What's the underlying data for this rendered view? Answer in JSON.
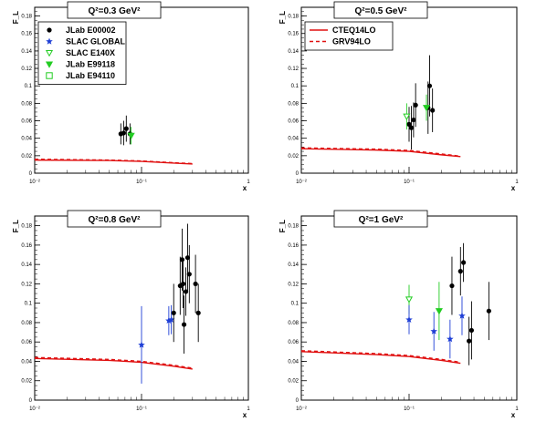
{
  "chart_data": [
    {
      "type": "scatter",
      "title": "Q²=0.3 GeV²",
      "ylabel": "F_L",
      "xlabel": "x",
      "x_scale": "log",
      "xlim": [
        0.01,
        1
      ],
      "ylim": [
        0,
        0.19
      ],
      "x_ticks": [
        "10⁻²",
        "10⁻¹",
        "1"
      ],
      "y_ticks": [
        0,
        0.02,
        0.04,
        0.06,
        0.08,
        0.1,
        0.12,
        0.14,
        0.16,
        0.18
      ],
      "legend": "top-left",
      "legend_entries": [
        {
          "label": "JLab E00002",
          "marker": "circle",
          "color": "#000000"
        },
        {
          "label": "SLAC GLOBAL",
          "marker": "star",
          "color": "#1f3fd6"
        },
        {
          "label": "SLAC E140X",
          "marker": "triangle-down-open",
          "color": "#22cc22"
        },
        {
          "label": "JLab E99118",
          "marker": "triangle-down",
          "color": "#22cc22"
        },
        {
          "label": "JLab E94110",
          "marker": "square-open",
          "color": "#22cc22"
        }
      ],
      "points": [
        {
          "series": "JLab E00002",
          "x": 0.064,
          "y": 0.045,
          "err": 0.012
        },
        {
          "series": "JLab E00002",
          "x": 0.068,
          "y": 0.046,
          "err": 0.014
        },
        {
          "series": "JLab E00002",
          "x": 0.072,
          "y": 0.051,
          "err": 0.015
        },
        {
          "series": "JLab E00002",
          "x": 0.078,
          "y": 0.045,
          "err": 0.012
        },
        {
          "series": "JLab E99118",
          "x": 0.08,
          "y": 0.043,
          "err": 0.01
        }
      ],
      "curves": [
        {
          "label": "CTEQ14LO",
          "x": [
            0.01,
            0.05,
            0.1,
            0.2,
            0.3
          ],
          "y": [
            0.015,
            0.0145,
            0.0135,
            0.0115,
            0.0105
          ]
        },
        {
          "label": "GRV94LO",
          "x": [
            0.01,
            0.05,
            0.1,
            0.2,
            0.3
          ],
          "y": [
            0.016,
            0.015,
            0.014,
            0.012,
            0.011
          ]
        }
      ]
    },
    {
      "type": "scatter",
      "title": "Q²=0.5 GeV²",
      "ylabel": "F_L",
      "xlabel": "x",
      "x_scale": "log",
      "xlim": [
        0.01,
        1
      ],
      "ylim": [
        0,
        0.19
      ],
      "x_ticks": [
        "10⁻²",
        "10⁻¹",
        "1"
      ],
      "y_ticks": [
        0,
        0.02,
        0.04,
        0.06,
        0.08,
        0.1,
        0.12,
        0.14,
        0.16,
        0.18
      ],
      "legend": "top-left",
      "legend_entries": [
        {
          "label": "CTEQ14LO",
          "line": "solid",
          "color": "#e01010"
        },
        {
          "label": "GRV94LO",
          "line": "dashed",
          "color": "#e01010"
        }
      ],
      "points": [
        {
          "series": "JLab E00002",
          "x": 0.1,
          "y": 0.056,
          "err": 0.02
        },
        {
          "series": "JLab E00002",
          "x": 0.105,
          "y": 0.052,
          "err": 0.025
        },
        {
          "series": "JLab E00002",
          "x": 0.11,
          "y": 0.061,
          "err": 0.02
        },
        {
          "series": "JLab E00002",
          "x": 0.115,
          "y": 0.078,
          "err": 0.025
        },
        {
          "series": "JLab E00002",
          "x": 0.15,
          "y": 0.075,
          "err": 0.03
        },
        {
          "series": "JLab E00002",
          "x": 0.155,
          "y": 0.1,
          "err": 0.035
        },
        {
          "series": "JLab E00002",
          "x": 0.165,
          "y": 0.072,
          "err": 0.025
        },
        {
          "series": "SLAC E140X",
          "x": 0.095,
          "y": 0.065,
          "err": 0.015
        },
        {
          "series": "JLab E99118",
          "x": 0.145,
          "y": 0.075,
          "err": 0.015
        }
      ],
      "curves": [
        {
          "label": "CTEQ14LO",
          "x": [
            0.01,
            0.05,
            0.1,
            0.2,
            0.3
          ],
          "y": [
            0.028,
            0.0265,
            0.025,
            0.021,
            0.019
          ]
        },
        {
          "label": "GRV94LO",
          "x": [
            0.01,
            0.05,
            0.1,
            0.2,
            0.3
          ],
          "y": [
            0.029,
            0.0275,
            0.026,
            0.022,
            0.0195
          ]
        }
      ]
    },
    {
      "type": "scatter",
      "title": "Q²=0.8 GeV²",
      "ylabel": "F_L",
      "xlabel": "x",
      "x_scale": "log",
      "xlim": [
        0.01,
        1
      ],
      "ylim": [
        0,
        0.19
      ],
      "x_ticks": [
        "10⁻²",
        "10⁻¹",
        "1"
      ],
      "y_ticks": [
        0,
        0.02,
        0.04,
        0.06,
        0.08,
        0.1,
        0.12,
        0.14,
        0.16,
        0.18
      ],
      "legend": "none",
      "points": [
        {
          "series": "SLAC GLOBAL",
          "x": 0.1,
          "y": 0.057,
          "err": 0.04
        },
        {
          "series": "SLAC GLOBAL",
          "x": 0.18,
          "y": 0.082,
          "err": 0.015
        },
        {
          "series": "SLAC GLOBAL",
          "x": 0.19,
          "y": 0.083,
          "err": 0.015
        },
        {
          "series": "JLab E00002",
          "x": 0.2,
          "y": 0.09,
          "err": 0.03
        },
        {
          "series": "JLab E00002",
          "x": 0.23,
          "y": 0.118,
          "err": 0.03
        },
        {
          "series": "JLab E00002",
          "x": 0.24,
          "y": 0.145,
          "err": 0.032
        },
        {
          "series": "JLab E00002",
          "x": 0.245,
          "y": 0.12,
          "err": 0.025
        },
        {
          "series": "JLab E00002",
          "x": 0.25,
          "y": 0.078,
          "err": 0.03
        },
        {
          "series": "JLab E00002",
          "x": 0.26,
          "y": 0.112,
          "err": 0.025
        },
        {
          "series": "JLab E00002",
          "x": 0.27,
          "y": 0.147,
          "err": 0.035
        },
        {
          "series": "JLab E00002",
          "x": 0.28,
          "y": 0.13,
          "err": 0.03
        },
        {
          "series": "JLab E00002",
          "x": 0.32,
          "y": 0.12,
          "err": 0.03
        },
        {
          "series": "JLab E00002",
          "x": 0.34,
          "y": 0.09,
          "err": 0.03
        }
      ],
      "curves": [
        {
          "label": "CTEQ14LO",
          "x": [
            0.01,
            0.05,
            0.1,
            0.2,
            0.3
          ],
          "y": [
            0.043,
            0.041,
            0.039,
            0.035,
            0.032
          ]
        },
        {
          "label": "GRV94LO",
          "x": [
            0.01,
            0.05,
            0.1,
            0.2,
            0.3
          ],
          "y": [
            0.044,
            0.042,
            0.04,
            0.036,
            0.033
          ]
        }
      ]
    },
    {
      "type": "scatter",
      "title": "Q²=1 GeV²",
      "ylabel": "F_L",
      "xlabel": "x",
      "x_scale": "log",
      "xlim": [
        0.01,
        1
      ],
      "ylim": [
        0,
        0.19
      ],
      "x_ticks": [
        "10⁻²",
        "10⁻¹",
        "1"
      ],
      "y_ticks": [
        0,
        0.02,
        0.04,
        0.06,
        0.08,
        0.1,
        0.12,
        0.14,
        0.16,
        0.18
      ],
      "legend": "none",
      "points": [
        {
          "series": "SLAC E140X",
          "x": 0.1,
          "y": 0.104,
          "err": 0.015
        },
        {
          "series": "SLAC GLOBAL",
          "x": 0.1,
          "y": 0.083,
          "err": 0.015
        },
        {
          "series": "SLAC GLOBAL",
          "x": 0.17,
          "y": 0.071,
          "err": 0.02
        },
        {
          "series": "JLab E99118",
          "x": 0.19,
          "y": 0.092,
          "err": 0.03
        },
        {
          "series": "SLAC GLOBAL",
          "x": 0.24,
          "y": 0.063,
          "err": 0.02
        },
        {
          "series": "JLab E00002",
          "x": 0.25,
          "y": 0.118,
          "err": 0.03
        },
        {
          "series": "JLab E00002",
          "x": 0.3,
          "y": 0.133,
          "err": 0.025
        },
        {
          "series": "SLAC GLOBAL",
          "x": 0.31,
          "y": 0.087,
          "err": 0.02
        },
        {
          "series": "JLab E00002",
          "x": 0.32,
          "y": 0.142,
          "err": 0.02
        },
        {
          "series": "JLab E00002",
          "x": 0.36,
          "y": 0.061,
          "err": 0.025
        },
        {
          "series": "JLab E00002",
          "x": 0.38,
          "y": 0.072,
          "err": 0.03
        },
        {
          "series": "JLab E00002",
          "x": 0.55,
          "y": 0.092,
          "err": 0.03
        }
      ],
      "curves": [
        {
          "label": "CTEQ14LO",
          "x": [
            0.01,
            0.05,
            0.1,
            0.2,
            0.3
          ],
          "y": [
            0.05,
            0.047,
            0.045,
            0.041,
            0.038
          ]
        },
        {
          "label": "GRV94LO",
          "x": [
            0.01,
            0.05,
            0.1,
            0.2,
            0.3
          ],
          "y": [
            0.051,
            0.048,
            0.046,
            0.042,
            0.039
          ]
        }
      ]
    }
  ]
}
